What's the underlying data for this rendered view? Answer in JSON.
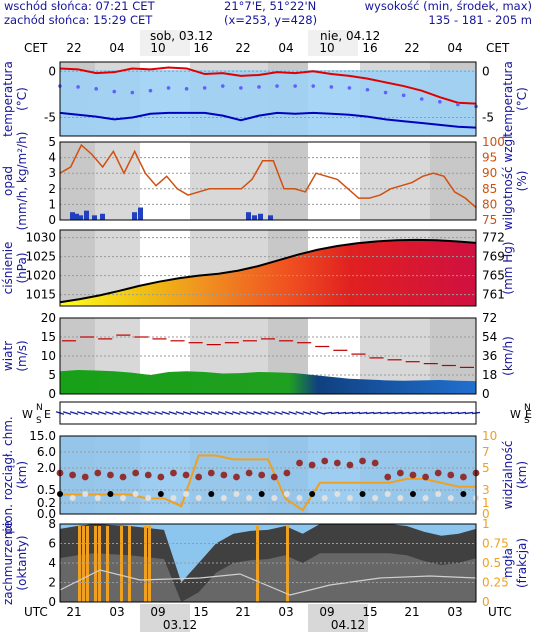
{
  "header": {
    "sunrise": "wschód słońca: 07:21 CET",
    "sunset": "zachód słońca: 15:29 CET",
    "coords": "21°7'E, 51°22'N",
    "grid": "(x=253,  y=428)",
    "elev_label": "wysokość (min, środek, max)",
    "elev_values": "135 - 181 - 205 m"
  },
  "time_axis": {
    "tz_top": "CET",
    "tz_bottom": "UTC",
    "day1_label": "sob, 03.12",
    "day2_label": "nie, 04.12",
    "top_hours": [
      "22",
      "04",
      "10",
      "16",
      "22",
      "04",
      "10",
      "16",
      "22",
      "04"
    ],
    "bottom_hours": [
      "21",
      "03",
      "09",
      "15",
      "21",
      "03",
      "09",
      "15",
      "21",
      "03"
    ],
    "bottom_date1": "03.12",
    "bottom_date2": "04.12"
  },
  "colors": {
    "temp_red": "#e00000",
    "temp_blue": "#0000c0",
    "dew_dots": "#6060ff",
    "humidity": "#d05010",
    "pressure_line": "#000000",
    "wind_gust": "#c00000",
    "visibility": "#f0a020",
    "cloud_gray": "#505050"
  },
  "chart_data": [
    {
      "type": "line",
      "name": "temperature",
      "ylabel_left": "temperatura\n(°C)",
      "ylabel_right": "temperatura\n(°C)",
      "yticks": [
        "0",
        "-5"
      ],
      "ylim": [
        -7,
        1
      ],
      "series": [
        {
          "values": [
            0.3,
            0.2,
            -0.2,
            -0.1,
            0.3,
            0.2,
            0.4,
            0.3,
            -0.3,
            -0.2,
            -0.5,
            -0.4,
            -0.1,
            -0.2,
            0.0,
            -0.3,
            -0.5,
            -0.8,
            -1.2,
            -1.6,
            -2.1,
            -2.8,
            -3.4,
            -3.5
          ]
        },
        {
          "values": [
            -4.5,
            -4.7,
            -4.9,
            -5.2,
            -5.0,
            -4.6,
            -4.5,
            -4.5,
            -4.5,
            -4.8,
            -5.3,
            -4.8,
            -4.5,
            -4.6,
            -4.5,
            -4.6,
            -4.7,
            -4.9,
            -5.2,
            -5.4,
            -5.6,
            -5.8,
            -6.0,
            -6.1
          ]
        },
        {
          "values": [
            -1.6,
            -1.7,
            -1.9,
            -2.2,
            -2.3,
            -2.1,
            -1.8,
            -1.9,
            -1.8,
            -1.6,
            -1.8,
            -1.7,
            -1.6,
            -1.6,
            -1.6,
            -1.7,
            -1.8,
            -2.0,
            -2.3,
            -2.6,
            -3.0,
            -3.3,
            -3.6,
            -3.8
          ]
        }
      ]
    },
    {
      "type": "line",
      "name": "precipitation-humidity",
      "ylabel_left": "opad\n(mm/h, kg/m²/h)",
      "ylabel_right": "wilgotność wzgl.\n(%)",
      "yticks_left": [
        "5",
        "4",
        "3",
        "2",
        "1",
        "0"
      ],
      "yticks_right": [
        "100",
        "95",
        "90",
        "85",
        "80",
        "75"
      ],
      "ylim_left": [
        0,
        5
      ],
      "ylim_right": [
        75,
        100
      ],
      "series": [
        {
          "name": "humidity",
          "values": [
            90,
            92,
            99,
            96,
            92,
            97,
            90,
            97,
            90,
            86,
            89,
            85,
            83,
            84,
            85,
            85,
            85,
            85,
            88,
            94,
            94,
            85,
            85,
            84,
            90,
            89,
            88,
            85,
            82,
            82,
            83,
            85,
            86,
            87,
            89,
            90,
            89,
            84,
            82,
            79
          ]
        }
      ]
    },
    {
      "type": "area",
      "name": "pressure",
      "ylabel_left": "ciśnienie\n(hPa)",
      "ylabel_right": "(mm Hg)",
      "yticks_left": [
        "1030",
        "1025",
        "1020",
        "1015"
      ],
      "yticks_right": [
        "772",
        "769",
        "765",
        "761"
      ],
      "ylim": [
        1012,
        1032
      ],
      "series": [
        {
          "values": [
            1013.0,
            1013.8,
            1014.8,
            1016.0,
            1017.3,
            1018.4,
            1019.3,
            1020.0,
            1020.5,
            1021.3,
            1022.5,
            1024.0,
            1025.5,
            1026.8,
            1027.8,
            1028.5,
            1029.0,
            1029.3,
            1029.4,
            1029.3,
            1029.0,
            1028.6
          ]
        }
      ]
    },
    {
      "type": "line",
      "name": "wind",
      "ylabel_left": "wiatr\n(m/s)",
      "ylabel_right": "(km/h)",
      "yticks_left": [
        "20",
        "15",
        "10",
        "5",
        "0"
      ],
      "yticks_right": [
        "72",
        "54",
        "36",
        "18",
        "0"
      ],
      "ylim": [
        0,
        20
      ],
      "series": [
        {
          "name": "gusts",
          "values": [
            14.0,
            15.0,
            14.5,
            15.5,
            15.0,
            14.5,
            14.0,
            13.5,
            13.0,
            13.5,
            14.0,
            14.5,
            14.0,
            13.5,
            12.5,
            11.5,
            10.5,
            9.5,
            9.0,
            8.5,
            8.0,
            7.5,
            7.0,
            6.5
          ]
        },
        {
          "name": "mean",
          "values": [
            6.0,
            6.3,
            6.2,
            6.0,
            5.6,
            5.0,
            5.8,
            6.0,
            5.8,
            5.4,
            5.5,
            5.8,
            5.7,
            5.5,
            5.0,
            4.5,
            4.0,
            3.8,
            3.6,
            3.5,
            3.6,
            3.7,
            3.5,
            3.4
          ]
        }
      ]
    },
    {
      "type": "scatter",
      "name": "visibility-cloudbase",
      "ylabel_left": "pion. rozciągł. chm.\n(km)",
      "ylabel_right": "widzialność\n(km)",
      "yticks_left": [
        "15.0",
        "6.0",
        "2.0",
        "0.5",
        "0.2",
        "0.0"
      ],
      "yticks_right": [
        "10",
        "7",
        "5",
        "3",
        "1",
        "0"
      ],
      "series": [
        {
          "name": "visibility",
          "values": [
            2.5,
            2.5,
            2.5,
            2.5,
            2.5,
            2.0,
            2.0,
            1.0,
            7.5,
            7.5,
            7.0,
            7.0,
            7.0,
            2.0,
            0.5,
            4.0,
            4.0,
            4.0,
            4.0,
            4.0,
            4.5,
            4.5,
            4.0,
            3.5,
            3.5
          ]
        }
      ]
    },
    {
      "type": "area",
      "name": "cloud-cover-fog",
      "ylabel_left": "zachmurzenie\n(oktanty)",
      "ylabel_right": "mgła\n(frakcja)",
      "yticks_left": [
        "8",
        "6",
        "4",
        "2",
        "0"
      ],
      "yticks_right": [
        "1",
        "0.75",
        "0.5",
        "0.25",
        "0"
      ],
      "ylim": [
        0,
        8
      ],
      "series": [
        {
          "name": "cloud",
          "values": [
            7.5,
            7.8,
            8.0,
            7.9,
            7.8,
            7.6,
            7.4,
            2.0,
            4.0,
            6.0,
            7.0,
            7.3,
            7.4,
            7.8,
            7.0,
            8.0,
            8.0,
            8.0,
            8.0,
            8.0,
            7.8,
            7.2,
            6.8,
            7.0,
            7.5
          ]
        }
      ]
    }
  ]
}
